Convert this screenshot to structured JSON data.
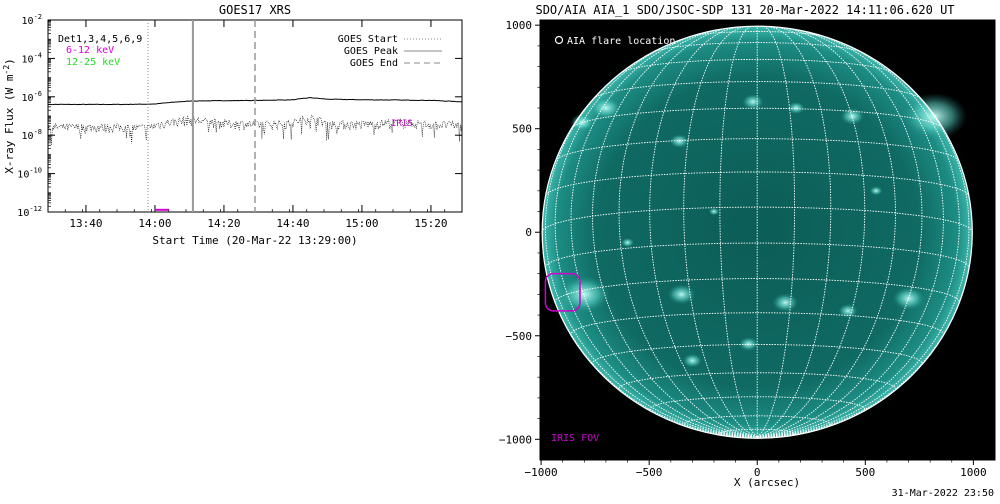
{
  "goes": {
    "title": "GOES17 XRS",
    "legend_left": {
      "det": "Det1,3,4,5,6,9",
      "band_low": "6-12 keV",
      "band_high": "12-25 keV",
      "color_low": "#e000e0",
      "color_high": "#22dd22"
    },
    "legend_right": [
      "GOES Start",
      "GOES Peak",
      "GOES End"
    ],
    "iris_label": "IRIS",
    "iris_color": "#d000d0"
  },
  "aia": {
    "title": "SDO/AIA AIA_1 SDO/JSOC-SDP 131 20-Mar-2022 14:11:06.620 UT",
    "legend": "AIA flare location",
    "fov_label": "IRIS FOV",
    "fov_color": "#d000d0",
    "disk_color": "#0e6f66",
    "bright_color": "#9ff5ec"
  },
  "footer": "31-Mar-2022 23:50",
  "chart_data": [
    {
      "type": "line",
      "title": "GOES17 XRS",
      "xlabel": "Start Time (20-Mar-22 13:29:00)",
      "ylabel": "X-ray Flux (W m^-2)",
      "ylabel_html": [
        "X-ray Flux (W m",
        "-2",
        ")"
      ],
      "x_ticks": [
        "13:40",
        "14:00",
        "14:20",
        "14:40",
        "15:00",
        "15:20"
      ],
      "y_ticks": [
        "10^-12",
        "10^-10",
        "10^-8",
        "10^-6",
        "10^-4",
        "10^-2"
      ],
      "y_tick_bases": [
        "10",
        "10",
        "10",
        "10",
        "10",
        "10"
      ],
      "y_tick_exps": [
        "-12",
        "-10",
        "-8",
        "-6",
        "-4",
        "-2"
      ],
      "xlim": [
        "13:29",
        "15:29"
      ],
      "ylim": [
        1e-12,
        0.01
      ],
      "y_scale": "log",
      "grid": false,
      "series": [
        {
          "name": "6-12 keV",
          "x": [
            "13:29",
            "13:40",
            "13:50",
            "14:00",
            "14:04",
            "14:10",
            "14:20",
            "14:30",
            "14:40",
            "14:45",
            "14:50",
            "15:00",
            "15:10",
            "15:20",
            "15:29"
          ],
          "values": [
            4e-07,
            4e-07,
            4e-07,
            4.2e-07,
            5e-07,
            6e-07,
            6.3e-07,
            6.5e-07,
            7e-07,
            9e-07,
            7.5e-07,
            7e-07,
            6.8e-07,
            6.5e-07,
            5.5e-07
          ]
        },
        {
          "name": "12-25 keV",
          "x": [
            "13:29",
            "13:40",
            "13:50",
            "13:58",
            "14:04",
            "14:10",
            "14:20",
            "14:30",
            "14:40",
            "14:45",
            "14:50",
            "15:00",
            "15:10",
            "15:20",
            "15:29"
          ],
          "values": [
            2.5e-08,
            2.5e-08,
            2.5e-08,
            2.3e-08,
            4.5e-08,
            6e-08,
            4e-08,
            3.5e-08,
            4e-08,
            8e-08,
            3.8e-08,
            3.5e-08,
            4.5e-08,
            3.5e-08,
            3.2e-08
          ]
        }
      ],
      "markers": {
        "goes_start": "13:58",
        "goes_peak": "14:11",
        "goes_end": "14:29",
        "iris_interval": [
          "14:00",
          "14:04"
        ],
        "iris_level": 1.3e-12
      }
    },
    {
      "type": "image",
      "title": "SDO/AIA AIA_1 SDO/JSOC-SDP 131 20-Mar-2022 14:11:06.620 UT",
      "xlabel": "X (arcsec)",
      "ylabel": "",
      "x_ticks": [
        -1000,
        -500,
        0,
        500,
        1000
      ],
      "y_ticks": [
        -1000,
        -500,
        0,
        500,
        1000
      ],
      "xlim": [
        -1005,
        1100
      ],
      "ylim": [
        -1100,
        1025
      ],
      "solar_radius_arcsec": 995,
      "iris_fov": {
        "x": [
          -980,
          -820
        ],
        "y": [
          -380,
          -200
        ]
      },
      "grid": true
    }
  ]
}
